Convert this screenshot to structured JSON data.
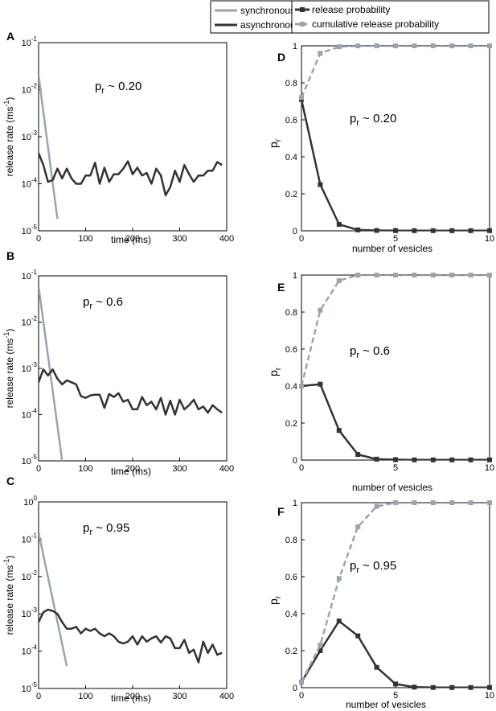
{
  "legend_left": {
    "entries": [
      {
        "label": "synchronous release",
        "color": "#9aa4ae"
      },
      {
        "label": "asynchronous release",
        "color": "#333333"
      }
    ]
  },
  "legend_right": {
    "entries": [
      {
        "label": "release probability",
        "color": "#333333"
      },
      {
        "label": "cumulative release probability",
        "color": "#9aa4ae"
      }
    ]
  },
  "chart_data": [
    {
      "id": "A",
      "panel_label": "A",
      "type": "line",
      "yscale": "log",
      "xlabel": "time (ms)",
      "ylabel": "release rate (ms-1)",
      "ylabel_base": "release rate (ms",
      "ylabel_exp": "-1",
      "ylabel_close": ")",
      "xlim": [
        0,
        400
      ],
      "xticks": [
        0,
        100,
        200,
        300,
        400
      ],
      "ylim_exp": [
        -5,
        -1
      ],
      "yticks_exp": [
        -5,
        -4,
        -3,
        -2,
        -1
      ],
      "annotation": {
        "base": "p",
        "sub": "r",
        "rest": " ~ 0.20"
      },
      "series": [
        {
          "name": "synchronous release",
          "color": "#9aa4ae",
          "x": [
            0,
            40
          ],
          "y": [
            0.02,
            1.8e-05
          ]
        },
        {
          "name": "asynchronous release",
          "color": "#333333",
          "x": [
            0,
            10,
            20,
            30,
            40,
            50,
            60,
            70,
            80,
            90,
            100,
            110,
            120,
            130,
            140,
            150,
            160,
            170,
            180,
            190,
            200,
            210,
            220,
            230,
            240,
            250,
            260,
            270,
            280,
            290,
            300,
            310,
            320,
            330,
            340,
            350,
            360,
            370,
            380,
            390
          ],
          "y": [
            0.00045,
            0.00025,
            0.00011,
            0.00012,
            0.00021,
            0.00013,
            0.00021,
            0.00013,
            0.0001,
            0.0001,
            0.00015,
            0.00015,
            0.00028,
            0.0001,
            0.00022,
            0.00011,
            0.00016,
            0.00016,
            0.00021,
            0.0003,
            0.00016,
            0.00022,
            0.00015,
            0.00017,
            0.0001,
            0.00021,
            0.00015,
            5.7e-05,
            8.5e-05,
            0.00019,
            0.00011,
            0.00025,
            0.00016,
            0.00011,
            0.00015,
            0.00015,
            0.00019,
            0.00019,
            0.00029,
            0.00025
          ]
        }
      ]
    },
    {
      "id": "B",
      "panel_label": "B",
      "type": "line",
      "yscale": "log",
      "xlabel": "time (ms)",
      "ylabel": "release rate (ms-1)",
      "ylabel_base": "release rate (ms",
      "ylabel_exp": "-1",
      "ylabel_close": ")",
      "xlim": [
        0,
        400
      ],
      "xticks": [
        0,
        100,
        200,
        300,
        400
      ],
      "ylim_exp": [
        -5,
        -1
      ],
      "yticks_exp": [
        -5,
        -4,
        -3,
        -2,
        -1
      ],
      "annotation": {
        "base": "p",
        "sub": "r",
        "rest": " ~ 0.6"
      },
      "series": [
        {
          "name": "synchronous release",
          "color": "#9aa4ae",
          "x": [
            0,
            50
          ],
          "y": [
            0.06,
            1e-05
          ]
        },
        {
          "name": "asynchronous release",
          "color": "#333333",
          "x": [
            0,
            10,
            20,
            30,
            40,
            50,
            60,
            70,
            80,
            90,
            100,
            110,
            120,
            130,
            140,
            150,
            160,
            170,
            180,
            190,
            200,
            210,
            220,
            230,
            240,
            250,
            260,
            270,
            280,
            290,
            300,
            310,
            320,
            330,
            340,
            350,
            360,
            370,
            380,
            390
          ],
          "y": [
            0.0005,
            0.00095,
            0.0007,
            0.00095,
            0.0006,
            0.00045,
            0.00055,
            0.0005,
            0.00045,
            0.00025,
            0.00023,
            0.00026,
            0.00027,
            0.00027,
            0.00014,
            0.00028,
            0.00024,
            0.00029,
            0.00019,
            0.00021,
            0.00013,
            0.00013,
            0.00024,
            0.00016,
            0.00019,
            0.00013,
            0.00023,
            0.0001,
            0.0002,
            0.0001,
            0.00021,
            0.00013,
            0.00016,
            0.00021,
            0.00013,
            0.00015,
            0.00011,
            0.00016,
            0.00013,
            0.00011
          ]
        }
      ]
    },
    {
      "id": "C",
      "panel_label": "C",
      "type": "line",
      "yscale": "log",
      "xlabel": "time (ms)",
      "ylabel": "release rate (ms-1)",
      "ylabel_base": "release rate (ms",
      "ylabel_exp": "-1",
      "ylabel_close": ")",
      "xlim": [
        0,
        400
      ],
      "xticks": [
        0,
        100,
        200,
        300,
        400
      ],
      "ylim_exp": [
        -5,
        0
      ],
      "yticks_exp": [
        -5,
        -4,
        -3,
        -2,
        -1,
        0
      ],
      "annotation": {
        "base": "p",
        "sub": "r",
        "rest": " ~ 0.95"
      },
      "series": [
        {
          "name": "synchronous release",
          "color": "#9aa4ae",
          "x": [
            0,
            60
          ],
          "y": [
            0.15,
            4e-05
          ]
        },
        {
          "name": "asynchronous release",
          "color": "#333333",
          "x": [
            0,
            10,
            20,
            30,
            40,
            50,
            60,
            70,
            80,
            90,
            100,
            110,
            120,
            130,
            140,
            150,
            160,
            170,
            180,
            190,
            200,
            210,
            220,
            230,
            240,
            250,
            260,
            270,
            280,
            290,
            300,
            310,
            320,
            330,
            340,
            350,
            360,
            370,
            380,
            390
          ],
          "y": [
            0.0006,
            0.0011,
            0.0013,
            0.0012,
            0.001,
            0.0006,
            0.0004,
            0.0004,
            0.00045,
            0.0003,
            0.0004,
            0.00035,
            0.0004,
            0.0003,
            0.00025,
            0.0003,
            0.00025,
            0.00018,
            0.00016,
            0.00018,
            0.00025,
            0.00015,
            0.00025,
            0.00018,
            0.00022,
            0.00025,
            0.00017,
            0.00025,
            0.00022,
            0.00012,
            0.00012,
            0.0002,
            9e-05,
            0.00011,
            5e-05,
            0.00018,
            9e-05,
            0.00015,
            8e-05,
            9e-05
          ]
        }
      ]
    },
    {
      "id": "D",
      "panel_label": "D",
      "type": "line",
      "xlabel": "number of vesicles",
      "ylabel": "pr",
      "ylabel_base": "p",
      "ylabel_sub": "r",
      "xlim": [
        0,
        10
      ],
      "xticks": [
        0,
        5,
        10
      ],
      "ylim": [
        0,
        1
      ],
      "yticks": [
        0,
        0.2,
        0.4,
        0.6,
        0.8,
        1
      ],
      "yticklabels": [
        "0",
        "0.2",
        "0.4",
        "0.6",
        "0.8",
        "1"
      ],
      "annotation": {
        "base": "p",
        "sub": "r",
        "rest": " ~ 0.20"
      },
      "series": [
        {
          "name": "release probability",
          "color": "#333333",
          "dash": false,
          "x": [
            0,
            1,
            2,
            3,
            4,
            5,
            6,
            7,
            8,
            9,
            10
          ],
          "y": [
            0.71,
            0.25,
            0.035,
            0.005,
            0.002,
            0.001,
            0.001,
            0.001,
            0.001,
            0.001,
            0.001
          ]
        },
        {
          "name": "cumulative release probability",
          "color": "#9aa4ae",
          "dash": true,
          "x": [
            0,
            1,
            2,
            3,
            4,
            5,
            6,
            7,
            8,
            9,
            10
          ],
          "y": [
            0.72,
            0.96,
            0.995,
            1,
            1,
            1,
            1,
            1,
            1,
            1,
            1
          ]
        }
      ]
    },
    {
      "id": "E",
      "panel_label": "E",
      "type": "line",
      "xlabel": "number of vesicles",
      "ylabel": "pr",
      "ylabel_base": "p",
      "ylabel_sub": "r",
      "xlim": [
        0,
        10
      ],
      "xticks": [
        0,
        5,
        10
      ],
      "ylim": [
        0,
        1
      ],
      "yticks": [
        0,
        0.2,
        0.4,
        0.6,
        0.8,
        1
      ],
      "yticklabels": [
        "0",
        "0.2",
        "0.4",
        "0.6",
        "0.8",
        "1"
      ],
      "annotation": {
        "base": "p",
        "sub": "r",
        "rest": " ~ 0.6"
      },
      "series": [
        {
          "name": "release probability",
          "color": "#333333",
          "dash": false,
          "x": [
            0,
            1,
            2,
            3,
            4,
            5,
            6,
            7,
            8,
            9,
            10
          ],
          "y": [
            0.4,
            0.41,
            0.16,
            0.03,
            0.005,
            0.002,
            0.001,
            0.001,
            0.001,
            0.001,
            0.001
          ]
        },
        {
          "name": "cumulative release probability",
          "color": "#9aa4ae",
          "dash": true,
          "x": [
            0,
            1,
            2,
            3,
            4,
            5,
            6,
            7,
            8,
            9,
            10
          ],
          "y": [
            0.4,
            0.81,
            0.97,
            1,
            1,
            1,
            1,
            1,
            1,
            1,
            1
          ]
        }
      ]
    },
    {
      "id": "F",
      "panel_label": "F",
      "type": "line",
      "xlabel": "number of vesicles",
      "ylabel": "pr",
      "ylabel_base": "p",
      "ylabel_sub": "r",
      "xlim": [
        0,
        10
      ],
      "xticks": [
        0,
        5,
        10
      ],
      "ylim": [
        0,
        1
      ],
      "yticks": [
        0,
        0.2,
        0.4,
        0.6,
        0.8,
        1
      ],
      "yticklabels": [
        "0",
        "0.2",
        "0.4",
        "0.6",
        "0.8",
        "1"
      ],
      "annotation": {
        "base": "p",
        "sub": "r",
        "rest": " ~ 0.95"
      },
      "series": [
        {
          "name": "release probability",
          "color": "#333333",
          "dash": false,
          "x": [
            0,
            1,
            2,
            3,
            4,
            5,
            6,
            7,
            8,
            9,
            10
          ],
          "y": [
            0.03,
            0.2,
            0.36,
            0.28,
            0.11,
            0.02,
            0.003,
            0.001,
            0.001,
            0.001,
            0.001
          ]
        },
        {
          "name": "cumulative release probability",
          "color": "#9aa4ae",
          "dash": true,
          "x": [
            0,
            1,
            2,
            3,
            4,
            5,
            6,
            7,
            8,
            9,
            10
          ],
          "y": [
            0.03,
            0.23,
            0.59,
            0.87,
            0.98,
            1,
            1,
            1,
            1,
            1,
            1
          ]
        }
      ]
    }
  ]
}
